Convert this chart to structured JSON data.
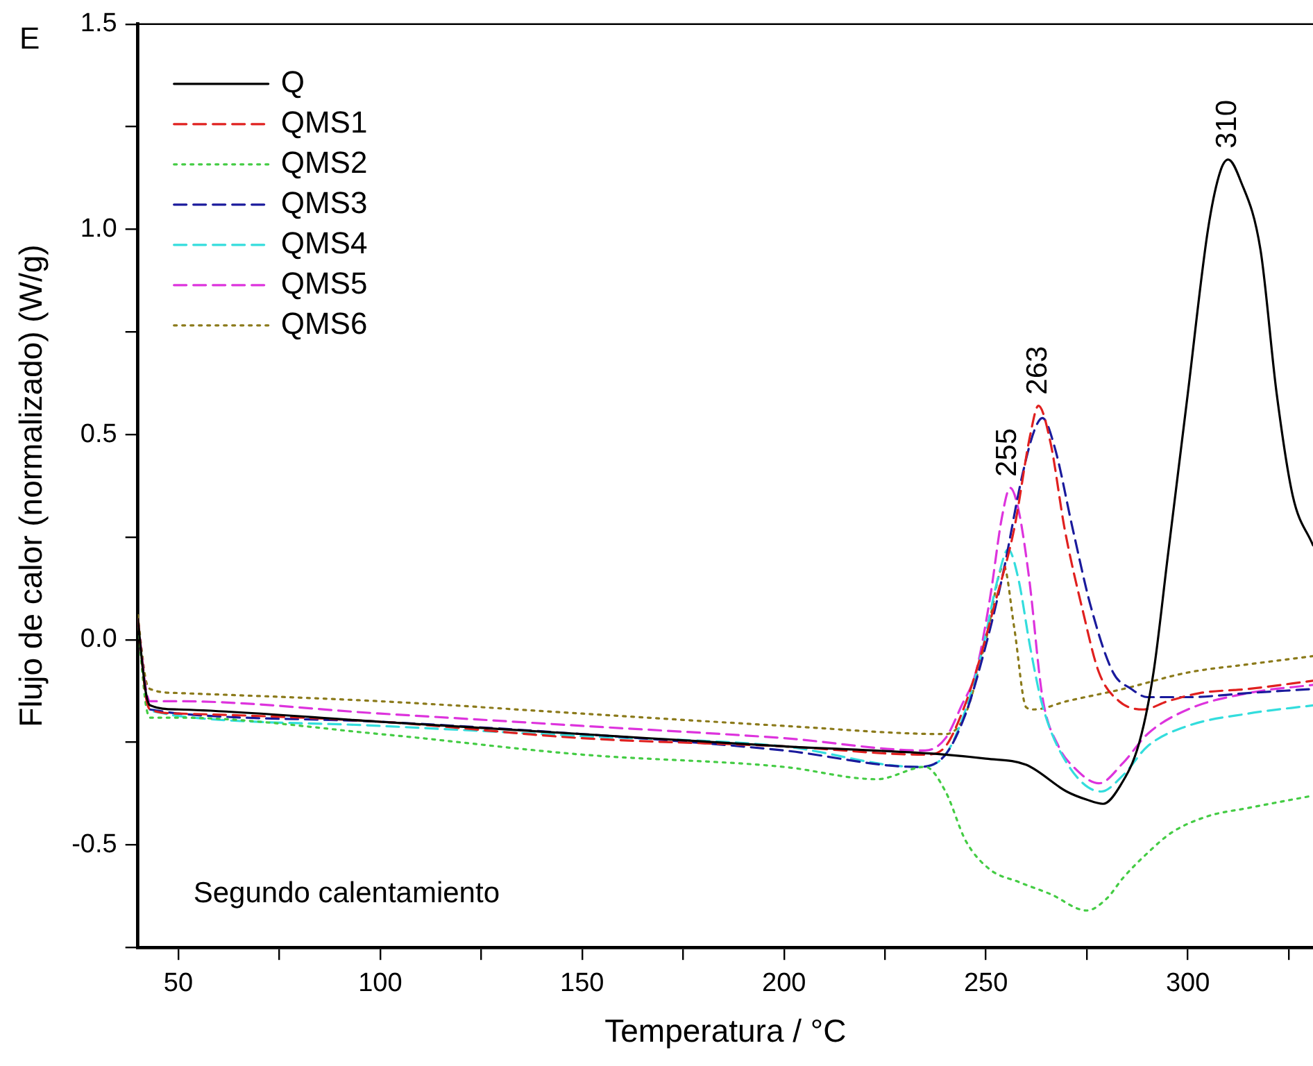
{
  "chart_data": {
    "type": "line",
    "title": "E",
    "xlabel": "Temperatura / °C",
    "ylabel": "Flujo de calor (normalizado) (W/g)",
    "xlim": [
      40,
      331
    ],
    "ylim": [
      -0.75,
      1.5
    ],
    "xticks": [
      50,
      {
        "value": 75,
        "label": null
      },
      100,
      {
        "value": 125,
        "label": null
      },
      150,
      {
        "value": 175,
        "label": null
      },
      200,
      {
        "value": 225,
        "label": null
      },
      250,
      {
        "value": 275,
        "label": null
      },
      300,
      {
        "value": 325,
        "label": null
      }
    ],
    "yticks": [
      {
        "value": -0.75,
        "label": null
      },
      {
        "value": -0.5,
        "label": "-0.5"
      },
      {
        "value": -0.25,
        "label": null
      },
      {
        "value": 0,
        "label": "0.0"
      },
      {
        "value": 0.25,
        "label": null
      },
      {
        "value": 0.5,
        "label": "0.5"
      },
      {
        "value": 0.75,
        "label": null
      },
      {
        "value": 1,
        "label": "1.0"
      },
      {
        "value": 1.25,
        "label": null
      },
      {
        "value": 1.5,
        "label": "1.5"
      }
    ],
    "legend": "top left",
    "marker": "none",
    "series": [
      {
        "name": "Q",
        "color": "#000000",
        "line_style": "solid",
        "x": [
          40,
          41,
          42,
          43,
          50,
          100,
          150,
          200,
          240,
          250,
          260,
          270,
          275,
          279,
          283,
          288,
          291.5,
          295,
          300,
          305,
          308,
          310,
          313,
          318,
          322,
          326,
          331
        ],
        "values": [
          0.05,
          -0.05,
          -0.13,
          -0.16,
          -0.17,
          -0.2,
          -0.23,
          -0.26,
          -0.28,
          -0.29,
          -0.305,
          -0.37,
          -0.39,
          -0.4,
          -0.36,
          -0.25,
          -0.08,
          0.2,
          0.6,
          1.0,
          1.14,
          1.17,
          1.12,
          0.95,
          0.6,
          0.35,
          0.23
        ]
      },
      {
        "name": "QMS1",
        "color": "#e0201f",
        "line_style": "dashed",
        "x": [
          40,
          41,
          42,
          43,
          50,
          100,
          150,
          200,
          235,
          240,
          244,
          247.5,
          252,
          257,
          261,
          263,
          266,
          269.5,
          274,
          278,
          283,
          289,
          295,
          303,
          315,
          331
        ],
        "values": [
          0.05,
          -0.05,
          -0.14,
          -0.17,
          -0.18,
          -0.2,
          -0.24,
          -0.26,
          -0.28,
          -0.26,
          -0.18,
          -0.08,
          0.08,
          0.27,
          0.5,
          0.57,
          0.48,
          0.27,
          0.07,
          -0.08,
          -0.15,
          -0.17,
          -0.15,
          -0.13,
          -0.12,
          -0.1
        ]
      },
      {
        "name": "QMS2",
        "color": "#44cc44",
        "line_style": "dotted",
        "x": [
          40,
          41,
          42,
          43,
          50,
          100,
          150,
          200,
          223,
          235,
          240,
          245,
          251,
          258,
          266,
          275,
          280,
          284,
          290,
          296,
          305,
          315,
          331
        ],
        "values": [
          0.05,
          -0.07,
          -0.16,
          -0.19,
          -0.19,
          -0.23,
          -0.28,
          -0.31,
          -0.34,
          -0.31,
          -0.37,
          -0.49,
          -0.56,
          -0.59,
          -0.62,
          -0.66,
          -0.63,
          -0.58,
          -0.52,
          -0.47,
          -0.43,
          -0.41,
          -0.38
        ]
      },
      {
        "name": "QMS3",
        "color": "#1a1a9c",
        "line_style": "dashed",
        "x": [
          43,
          50,
          100,
          150,
          200,
          233,
          240,
          245,
          249,
          254,
          259,
          262,
          264,
          267,
          271.5,
          276,
          281.5,
          286,
          290,
          300,
          315,
          331
        ],
        "values": [
          -0.17,
          -0.18,
          -0.2,
          -0.23,
          -0.27,
          -0.31,
          -0.28,
          -0.18,
          -0.05,
          0.15,
          0.4,
          0.51,
          0.54,
          0.47,
          0.27,
          0.08,
          -0.08,
          -0.12,
          -0.14,
          -0.14,
          -0.13,
          -0.12
        ]
      },
      {
        "name": "QMS4",
        "color": "#33dddd",
        "line_style": "dashed",
        "x": [
          44,
          50,
          100,
          150,
          200,
          233,
          240,
          245,
          249,
          253,
          255.5,
          258,
          261,
          264,
          270,
          278.5,
          284,
          290,
          300,
          315,
          331
        ],
        "values": [
          -0.175,
          -0.186,
          -0.21,
          -0.235,
          -0.26,
          -0.31,
          -0.28,
          -0.17,
          -0.03,
          0.15,
          0.22,
          0.15,
          -0.02,
          -0.16,
          -0.3,
          -0.37,
          -0.33,
          -0.26,
          -0.21,
          -0.18,
          -0.16
        ]
      },
      {
        "name": "QMS5",
        "color": "#dd33dd",
        "line_style": "dashed",
        "x": [
          40,
          41,
          42,
          43,
          50,
          100,
          150,
          200,
          235,
          240,
          244,
          247.5,
          251,
          254,
          256,
          258,
          260.7,
          264,
          268,
          271.7,
          278,
          284,
          290,
          300,
          315,
          331
        ],
        "values": [
          0.05,
          -0.04,
          -0.12,
          -0.15,
          -0.15,
          -0.18,
          -0.21,
          -0.24,
          -0.27,
          -0.24,
          -0.16,
          -0.08,
          0.1,
          0.3,
          0.37,
          0.32,
          0.15,
          -0.14,
          -0.26,
          -0.31,
          -0.35,
          -0.3,
          -0.23,
          -0.17,
          -0.13,
          -0.11
        ]
      },
      {
        "name": "QMS6",
        "color": "#8b7a1a",
        "line_style": "dotted",
        "x": [
          40,
          41,
          42,
          43,
          50,
          100,
          150,
          200,
          240,
          245,
          250,
          254.4,
          257,
          260,
          262,
          270,
          284,
          300,
          315,
          331
        ],
        "values": [
          0.06,
          -0.03,
          -0.1,
          -0.12,
          -0.13,
          -0.15,
          -0.18,
          -0.21,
          -0.23,
          -0.18,
          0.0,
          0.18,
          0.03,
          -0.165,
          -0.17,
          -0.15,
          -0.12,
          -0.08,
          -0.06,
          -0.04
        ]
      }
    ],
    "annotations": [
      {
        "text": "255",
        "x": 255.5,
        "y": 0.37
      },
      {
        "text": "263",
        "x": 263,
        "y": 0.57
      },
      {
        "text": "310",
        "x": 310,
        "y": 1.17
      },
      "Segundo calentamiento"
    ]
  }
}
